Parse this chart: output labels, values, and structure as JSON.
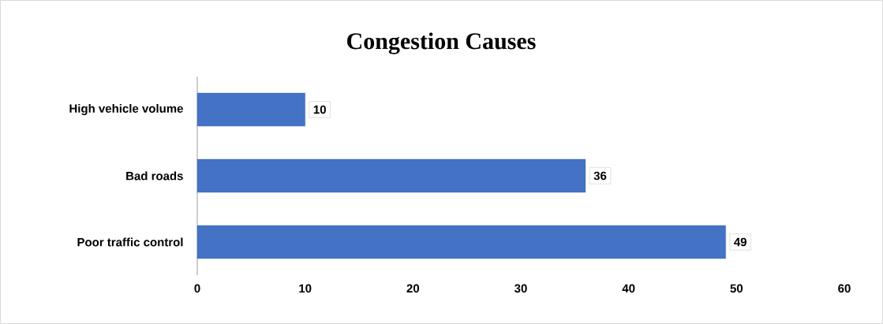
{
  "chart_data": {
    "type": "bar",
    "orientation": "horizontal",
    "title": "Congestion Causes",
    "categories": [
      "High vehicle volume",
      "Bad roads",
      "Poor traffic control"
    ],
    "values": [
      10,
      36,
      49
    ],
    "color": "#4472c4",
    "xlim": [
      0,
      60
    ],
    "xticks": [
      0,
      10,
      20,
      30,
      40,
      50,
      60
    ],
    "data_labels": true
  }
}
